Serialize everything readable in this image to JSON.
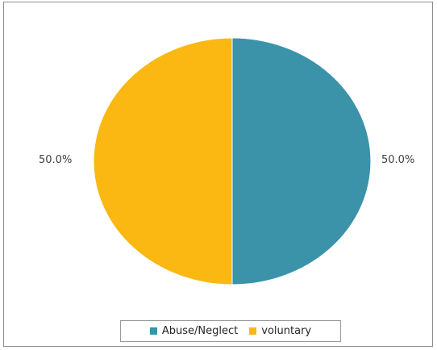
{
  "chart_data": {
    "type": "pie",
    "title": "",
    "slices": [
      {
        "label": "Abuse/Neglect",
        "value": 50.0,
        "display": "50.0%",
        "color": "#3a93a8"
      },
      {
        "label": "voluntary",
        "value": 50.0,
        "display": "50.0%",
        "color": "#fbb812"
      }
    ],
    "legend_position": "bottom"
  }
}
